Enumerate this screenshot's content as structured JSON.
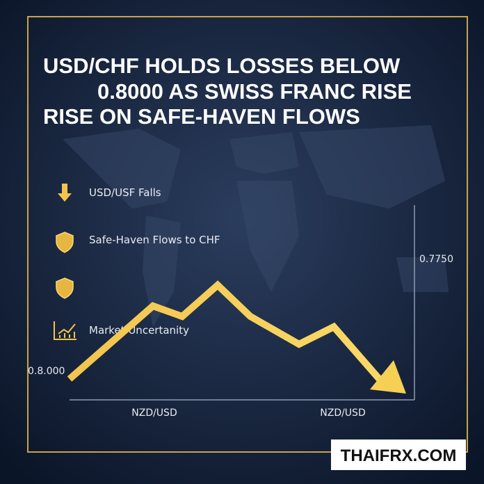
{
  "headline": [
    "USD/CHF HOLDS LOSSES BELOW",
    "0.8000 AS SWISS FRANC RISE",
    "RISE ON SAFE-HAVEN FLOWS"
  ],
  "legend": [
    "USD/USF Falls",
    "Safe-Haven Flows to CHF",
    "Market Uncertanity"
  ],
  "chart": {
    "y_labels": [
      "0.8.000",
      "0.7750"
    ],
    "x_labels": [
      "NZD/USD",
      "NZD/USD"
    ]
  },
  "brand": "THAIFRX.COM"
}
